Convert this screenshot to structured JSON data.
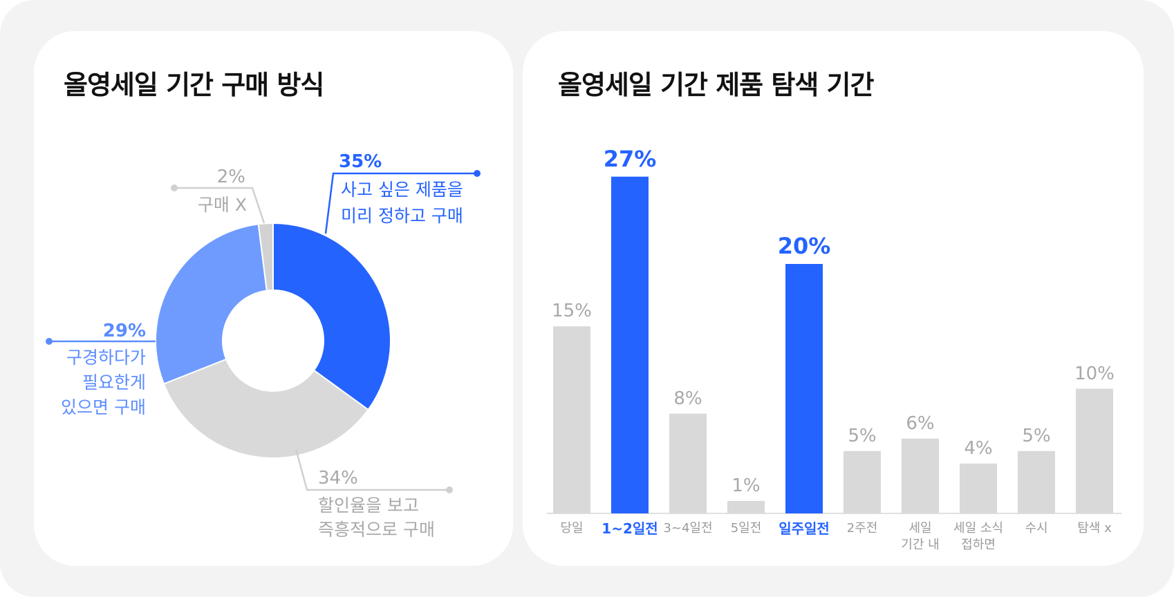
{
  "chart_data": [
    {
      "type": "pie",
      "title": "올영세일 기간 구매 방식",
      "donut": true,
      "categories": [
        "사고 싶은 제품을\n미리 정하고 구매",
        "할인율을 보고\n즉흥적으로 구매",
        "구경하다가\n필요한게\n있으면 구매",
        "구매 X"
      ],
      "values": [
        35,
        34,
        29,
        2
      ],
      "value_labels": [
        "35%",
        "34%",
        "29%",
        "2%"
      ],
      "colors": [
        "#2563ff",
        "#d9d9d9",
        "#6f9bff",
        "#d2d2d2"
      ]
    },
    {
      "type": "bar",
      "title": "올영세일 기간 제품 탐색 기간",
      "categories": [
        "당일",
        "1~2일전",
        "3~4일전",
        "5일전",
        "일주일전",
        "2주전",
        "세일\n기간 내",
        "세일 소식\n접하면",
        "수시",
        "탐색 x"
      ],
      "values": [
        15,
        27,
        8,
        1,
        20,
        5,
        6,
        4,
        5,
        10
      ],
      "value_labels": [
        "15%",
        "27%",
        "8%",
        "1%",
        "20%",
        "5%",
        "6%",
        "4%",
        "5%",
        "10%"
      ],
      "colors": [
        "#d9d9d9",
        "#2563ff",
        "#d9d9d9",
        "#d9d9d9",
        "#2563ff",
        "#d9d9d9",
        "#d9d9d9",
        "#d9d9d9",
        "#d9d9d9",
        "#d9d9d9"
      ]
    }
  ]
}
